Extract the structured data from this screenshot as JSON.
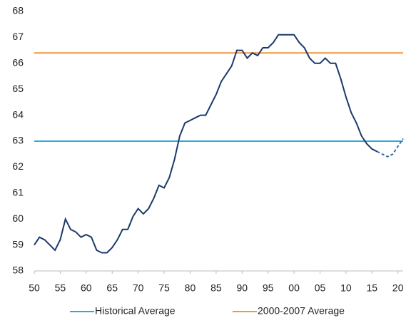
{
  "chart_data": {
    "type": "line",
    "x": [
      1950,
      1951,
      1952,
      1953,
      1954,
      1955,
      1956,
      1957,
      1958,
      1959,
      1960,
      1961,
      1962,
      1963,
      1964,
      1965,
      1966,
      1967,
      1968,
      1969,
      1970,
      1971,
      1972,
      1973,
      1974,
      1975,
      1976,
      1977,
      1978,
      1979,
      1980,
      1981,
      1982,
      1983,
      1984,
      1985,
      1986,
      1987,
      1988,
      1989,
      1990,
      1991,
      1992,
      1993,
      1994,
      1995,
      1996,
      1997,
      1998,
      1999,
      2000,
      2001,
      2002,
      2003,
      2004,
      2005,
      2006,
      2007,
      2008,
      2009,
      2010,
      2011,
      2012,
      2013,
      2014,
      2015,
      2016,
      2017,
      2018,
      2019,
      2020,
      2021
    ],
    "series": [
      {
        "color": "#1b3a6b",
        "dashed": false,
        "values": [
          59.0,
          59.3,
          59.2,
          59.0,
          58.8,
          59.2,
          60.0,
          59.6,
          59.5,
          59.3,
          59.4,
          59.3,
          58.8,
          58.7,
          58.7,
          58.9,
          59.2,
          59.6,
          59.6,
          60.1,
          60.4,
          60.2,
          60.4,
          60.8,
          61.3,
          61.2,
          61.6,
          62.3,
          63.2,
          63.7,
          63.8,
          63.9,
          64.0,
          64.0,
          64.4,
          64.8,
          65.3,
          65.6,
          65.9,
          66.5,
          66.5,
          66.2,
          66.4,
          66.3,
          66.6,
          66.6,
          66.8,
          67.1,
          67.1,
          67.1,
          67.1,
          66.8,
          66.6,
          66.2,
          66.0,
          66.0,
          66.2,
          66.0,
          66.0,
          65.4,
          64.7,
          64.1,
          63.7,
          63.2,
          62.9,
          62.7,
          62.6,
          null,
          null,
          null,
          null,
          null
        ]
      },
      {
        "color": "#3a6ea5",
        "dashed": true,
        "values": [
          null,
          null,
          null,
          null,
          null,
          null,
          null,
          null,
          null,
          null,
          null,
          null,
          null,
          null,
          null,
          null,
          null,
          null,
          null,
          null,
          null,
          null,
          null,
          null,
          null,
          null,
          null,
          null,
          null,
          null,
          null,
          null,
          null,
          null,
          null,
          null,
          null,
          null,
          null,
          null,
          null,
          null,
          null,
          null,
          null,
          null,
          null,
          null,
          null,
          null,
          null,
          null,
          null,
          null,
          null,
          null,
          null,
          null,
          null,
          null,
          null,
          null,
          null,
          null,
          null,
          null,
          62.6,
          62.5,
          62.4,
          62.5,
          62.8,
          63.1
        ]
      }
    ],
    "hlines": [
      {
        "name": "Historical Average",
        "color": "#29a9e0",
        "value": 63.0
      },
      {
        "name": "2000-2007 Average",
        "color": "#f0963c",
        "value": 66.4
      }
    ],
    "xlim": [
      1950,
      2021
    ],
    "xticks": [
      {
        "value": 1950,
        "label": "50"
      },
      {
        "value": 1955,
        "label": "55"
      },
      {
        "value": 1960,
        "label": "60"
      },
      {
        "value": 1965,
        "label": "65"
      },
      {
        "value": 1970,
        "label": "70"
      },
      {
        "value": 1975,
        "label": "75"
      },
      {
        "value": 1980,
        "label": "80"
      },
      {
        "value": 1985,
        "label": "85"
      },
      {
        "value": 1990,
        "label": "90"
      },
      {
        "value": 1995,
        "label": "95"
      },
      {
        "value": 2000,
        "label": "00"
      },
      {
        "value": 2005,
        "label": "05"
      },
      {
        "value": 2010,
        "label": "10"
      },
      {
        "value": 2015,
        "label": "15"
      },
      {
        "value": 2020,
        "label": "20"
      }
    ],
    "ylim": [
      58,
      68
    ],
    "yticks": [
      58,
      59,
      60,
      61,
      62,
      63,
      64,
      65,
      66,
      67,
      68
    ]
  }
}
